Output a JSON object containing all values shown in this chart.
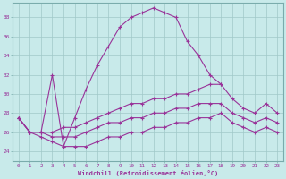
{
  "xlabel": "Windchill (Refroidissement éolien,°C)",
  "background_color": "#c8eaea",
  "grid_color": "#a0c8c8",
  "line_color": "#993399",
  "xmin": -0.5,
  "xmax": 23.5,
  "ymin": 23,
  "ymax": 39.5,
  "yticks": [
    24,
    26,
    28,
    30,
    32,
    34,
    36,
    38
  ],
  "xticks": [
    0,
    1,
    2,
    3,
    4,
    5,
    6,
    7,
    8,
    9,
    10,
    11,
    12,
    13,
    14,
    15,
    16,
    17,
    18,
    19,
    20,
    21,
    22,
    23
  ],
  "series1_y": [
    27.5,
    26.0,
    26.0,
    32.0,
    24.5,
    27.5,
    30.5,
    33.0,
    35.0,
    37.0,
    38.0,
    38.5,
    39.0,
    38.5,
    38.0,
    35.5,
    34.0,
    32.0,
    31.0,
    null,
    null,
    null,
    null,
    null
  ],
  "series2_y": [
    27.5,
    26.0,
    26.0,
    26.0,
    26.5,
    26.5,
    27.0,
    27.5,
    28.0,
    28.5,
    29.0,
    29.0,
    29.5,
    29.5,
    30.0,
    30.0,
    30.5,
    31.0,
    31.0,
    29.5,
    28.5,
    28.0,
    29.0,
    28.0
  ],
  "series3_y": [
    27.5,
    26.0,
    26.0,
    25.5,
    25.5,
    25.5,
    26.0,
    26.5,
    27.0,
    27.0,
    27.5,
    27.5,
    28.0,
    28.0,
    28.5,
    28.5,
    29.0,
    29.0,
    29.0,
    28.0,
    27.5,
    27.0,
    27.5,
    27.0
  ],
  "series4_y": [
    27.5,
    26.0,
    25.5,
    25.0,
    24.5,
    24.5,
    24.5,
    25.0,
    25.5,
    25.5,
    26.0,
    26.0,
    26.5,
    26.5,
    27.0,
    27.0,
    27.5,
    27.5,
    28.0,
    27.0,
    26.5,
    26.0,
    26.5,
    26.0
  ]
}
